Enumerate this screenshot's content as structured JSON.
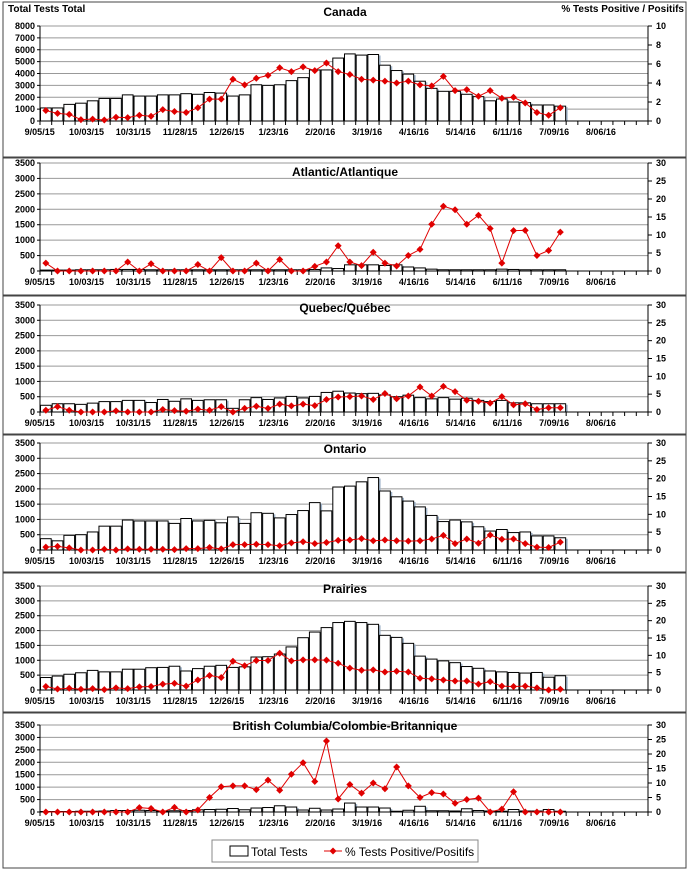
{
  "x_tick_labels": [
    "9/05/15",
    "10/03/15",
    "10/31/15",
    "11/28/15",
    "12/26/15",
    "1/23/16",
    "2/20/16",
    "3/19/16",
    "4/16/16",
    "5/14/16",
    "6/11/16",
    "7/09/16",
    "8/06/16"
  ],
  "legend": {
    "bars": "Total Tests",
    "line": "% Tests Positive/Positifs"
  },
  "colors": {
    "line": "#e00000",
    "bar_fill": "#ffffff",
    "bar_edge": "#000000",
    "grid": "#999999"
  },
  "chart_data": [
    {
      "type": "bar+line",
      "title": "Canada",
      "ylabel": "Total Tests Total",
      "y2label": "% Tests Positive / Positifs",
      "ylim": [
        0,
        8000
      ],
      "ystep": 1000,
      "y2lim": [
        0,
        10
      ],
      "y2step": 2,
      "grid": true,
      "series": [
        {
          "name": "Total Tests",
          "values": [
            1100,
            1100,
            1400,
            1500,
            1700,
            1900,
            1900,
            2200,
            2100,
            2100,
            2200,
            2200,
            2300,
            2250,
            2400,
            2350,
            2100,
            2200,
            3050,
            3000,
            3050,
            3400,
            3650,
            4300,
            4300,
            5300,
            5650,
            5550,
            5600,
            4700,
            4250,
            3950,
            3350,
            2750,
            2500,
            2500,
            2250,
            2050,
            1700,
            1850,
            1600,
            1550,
            1350,
            1350,
            1250
          ]
        },
        {
          "name": "% Tests Positive/Positifs",
          "values": [
            1.1,
            0.8,
            0.7,
            0.15,
            0.2,
            0.1,
            0.4,
            0.35,
            0.6,
            0.5,
            1.2,
            1.0,
            0.9,
            1.4,
            2.3,
            2.3,
            4.4,
            3.8,
            4.5,
            4.8,
            5.6,
            5.2,
            5.7,
            5.3,
            6.1,
            5.2,
            4.9,
            4.4,
            4.3,
            4.2,
            4.0,
            4.2,
            3.8,
            3.7,
            4.7,
            3.2,
            3.3,
            2.6,
            3.2,
            2.4,
            2.5,
            1.9,
            0.9,
            0.6,
            1.4
          ]
        }
      ]
    },
    {
      "type": "bar+line",
      "title": "Atlantic/Atlantique",
      "ylim": [
        0,
        3500
      ],
      "ystep": 500,
      "y2lim": [
        0,
        30
      ],
      "y2step": 5,
      "grid": true,
      "series": [
        {
          "name": "Total Tests",
          "values": [
            30,
            30,
            30,
            40,
            40,
            40,
            50,
            50,
            50,
            40,
            40,
            40,
            40,
            40,
            40,
            40,
            40,
            40,
            40,
            40,
            40,
            40,
            40,
            50,
            100,
            80,
            200,
            200,
            200,
            180,
            200,
            130,
            100,
            60,
            40,
            40,
            40,
            40,
            40,
            60,
            50,
            40,
            40,
            40,
            40
          ]
        },
        {
          "name": "% Tests Positive/Positifs",
          "values": [
            2.2,
            0,
            0,
            0,
            0,
            0,
            0,
            2.5,
            0,
            2.0,
            0,
            0,
            0,
            1.8,
            0,
            3.7,
            0,
            0,
            2.2,
            0,
            3.2,
            0,
            0,
            1.3,
            2.5,
            7,
            2.5,
            1.5,
            5.2,
            2.2,
            1.4,
            4.3,
            6,
            13,
            18,
            17,
            13,
            15.5,
            11.8,
            2.2,
            11.2,
            11.3,
            4.3,
            5.7,
            10.8
          ]
        }
      ]
    },
    {
      "type": "bar+line",
      "title": "Quebec/Québec",
      "ylim": [
        0,
        3500
      ],
      "ystep": 500,
      "y2lim": [
        0,
        30
      ],
      "y2step": 5,
      "grid": true,
      "series": [
        {
          "name": "Total Tests",
          "values": [
            220,
            270,
            270,
            250,
            290,
            340,
            340,
            380,
            380,
            310,
            410,
            350,
            430,
            380,
            400,
            400,
            120,
            400,
            470,
            410,
            460,
            510,
            460,
            510,
            640,
            680,
            620,
            600,
            610,
            560,
            500,
            550,
            470,
            430,
            470,
            420,
            450,
            380,
            340,
            380,
            300,
            300,
            270,
            270,
            270
          ]
        },
        {
          "name": "% Tests Positive/Positifs",
          "values": [
            0.5,
            1.5,
            0.5,
            0,
            0,
            0,
            0.3,
            0,
            0,
            0,
            0.7,
            0.4,
            0.2,
            0.8,
            0.5,
            1.5,
            0,
            1.0,
            1.6,
            1.0,
            2.2,
            1.7,
            2.2,
            1.8,
            3.5,
            4.2,
            4.3,
            4.5,
            3.5,
            5.2,
            3.7,
            4.5,
            7.0,
            4.5,
            7.2,
            5.7,
            3.3,
            3.0,
            2.5,
            4.3,
            2.0,
            2.3,
            0.7,
            1.2,
            1.2
          ]
        }
      ]
    },
    {
      "type": "bar+line",
      "title": "Ontario",
      "ylim": [
        0,
        3500
      ],
      "ystep": 500,
      "y2lim": [
        0,
        30
      ],
      "y2step": 5,
      "grid": true,
      "series": [
        {
          "name": "Total Tests",
          "values": [
            370,
            300,
            480,
            500,
            590,
            780,
            780,
            980,
            950,
            950,
            950,
            870,
            1030,
            950,
            970,
            890,
            1080,
            870,
            1220,
            1200,
            1050,
            1160,
            1290,
            1550,
            1280,
            2060,
            2090,
            2230,
            2370,
            1930,
            1740,
            1600,
            1410,
            1130,
            930,
            980,
            920,
            760,
            620,
            670,
            570,
            590,
            460,
            460,
            400
          ]
        },
        {
          "name": "% Tests Positive/Positifs",
          "values": [
            0.8,
            1.0,
            0.6,
            0,
            0,
            0.2,
            0,
            0.3,
            0.2,
            0.2,
            0.2,
            0.1,
            0.4,
            0.4,
            0.7,
            0.3,
            1.5,
            1.5,
            1.6,
            1.5,
            1.2,
            2.0,
            2.3,
            1.8,
            2.1,
            2.7,
            2.8,
            3.2,
            2.6,
            2.8,
            2.6,
            2.5,
            2.6,
            3.1,
            4.1,
            1.8,
            3.1,
            1.9,
            4.2,
            3.0,
            3.1,
            1.8,
            0.8,
            0.7,
            2.2
          ]
        }
      ]
    },
    {
      "type": "bar+line",
      "title": "Prairies",
      "ylim": [
        0,
        3500
      ],
      "ystep": 500,
      "y2lim": [
        0,
        30
      ],
      "y2step": 5,
      "grid": true,
      "series": [
        {
          "name": "Total Tests",
          "values": [
            420,
            470,
            530,
            580,
            660,
            610,
            610,
            700,
            700,
            750,
            760,
            800,
            640,
            720,
            800,
            830,
            760,
            780,
            1110,
            1120,
            1210,
            1450,
            1760,
            1950,
            2100,
            2270,
            2310,
            2270,
            2210,
            1840,
            1770,
            1570,
            1140,
            1040,
            980,
            920,
            790,
            730,
            640,
            610,
            590,
            570,
            590,
            430,
            480
          ]
        },
        {
          "name": "% Tests Positive/Positifs",
          "values": [
            1.0,
            0.3,
            0.5,
            0.2,
            0.4,
            0.1,
            0.6,
            0.4,
            0.9,
            1.0,
            1.7,
            1.9,
            1.1,
            2.9,
            4.2,
            3.6,
            8.3,
            7.0,
            8.5,
            8.5,
            10.6,
            8.4,
            8.7,
            8.7,
            8.6,
            7.7,
            6.3,
            5.7,
            5.8,
            5.2,
            5.4,
            5.2,
            3.4,
            3.2,
            2.9,
            2.6,
            2.6,
            1.7,
            2.4,
            1.1,
            1.0,
            1.1,
            0.6,
            0,
            0.2
          ]
        }
      ]
    },
    {
      "type": "bar+line",
      "title": "British Columbia/Colombie-Britannique",
      "ylim": [
        0,
        3500
      ],
      "ystep": 500,
      "y2lim": [
        0,
        30
      ],
      "y2step": 5,
      "grid": true,
      "legend": "bottom",
      "series": [
        {
          "name": "Total Tests",
          "values": [
            20,
            20,
            20,
            30,
            30,
            40,
            60,
            60,
            70,
            60,
            40,
            50,
            60,
            90,
            100,
            110,
            140,
            90,
            160,
            180,
            250,
            200,
            80,
            150,
            80,
            120,
            360,
            200,
            200,
            160,
            30,
            70,
            230,
            50,
            50,
            40,
            130,
            60,
            40,
            30,
            100,
            40,
            40,
            100,
            30
          ]
        },
        {
          "name": "% Tests Positive/Positifs",
          "values": [
            0,
            0,
            0,
            0,
            0,
            0,
            0,
            0,
            1.5,
            1.2,
            0,
            1.6,
            0,
            0.7,
            5.0,
            8.7,
            9,
            9,
            7.7,
            11,
            7.5,
            13,
            17,
            10.5,
            24.5,
            4.5,
            9.5,
            6.5,
            10,
            8,
            15.5,
            9,
            5,
            6.7,
            6.2,
            3,
            4.3,
            4.8,
            0,
            1,
            7,
            0,
            0,
            0,
            0
          ]
        }
      ]
    }
  ]
}
